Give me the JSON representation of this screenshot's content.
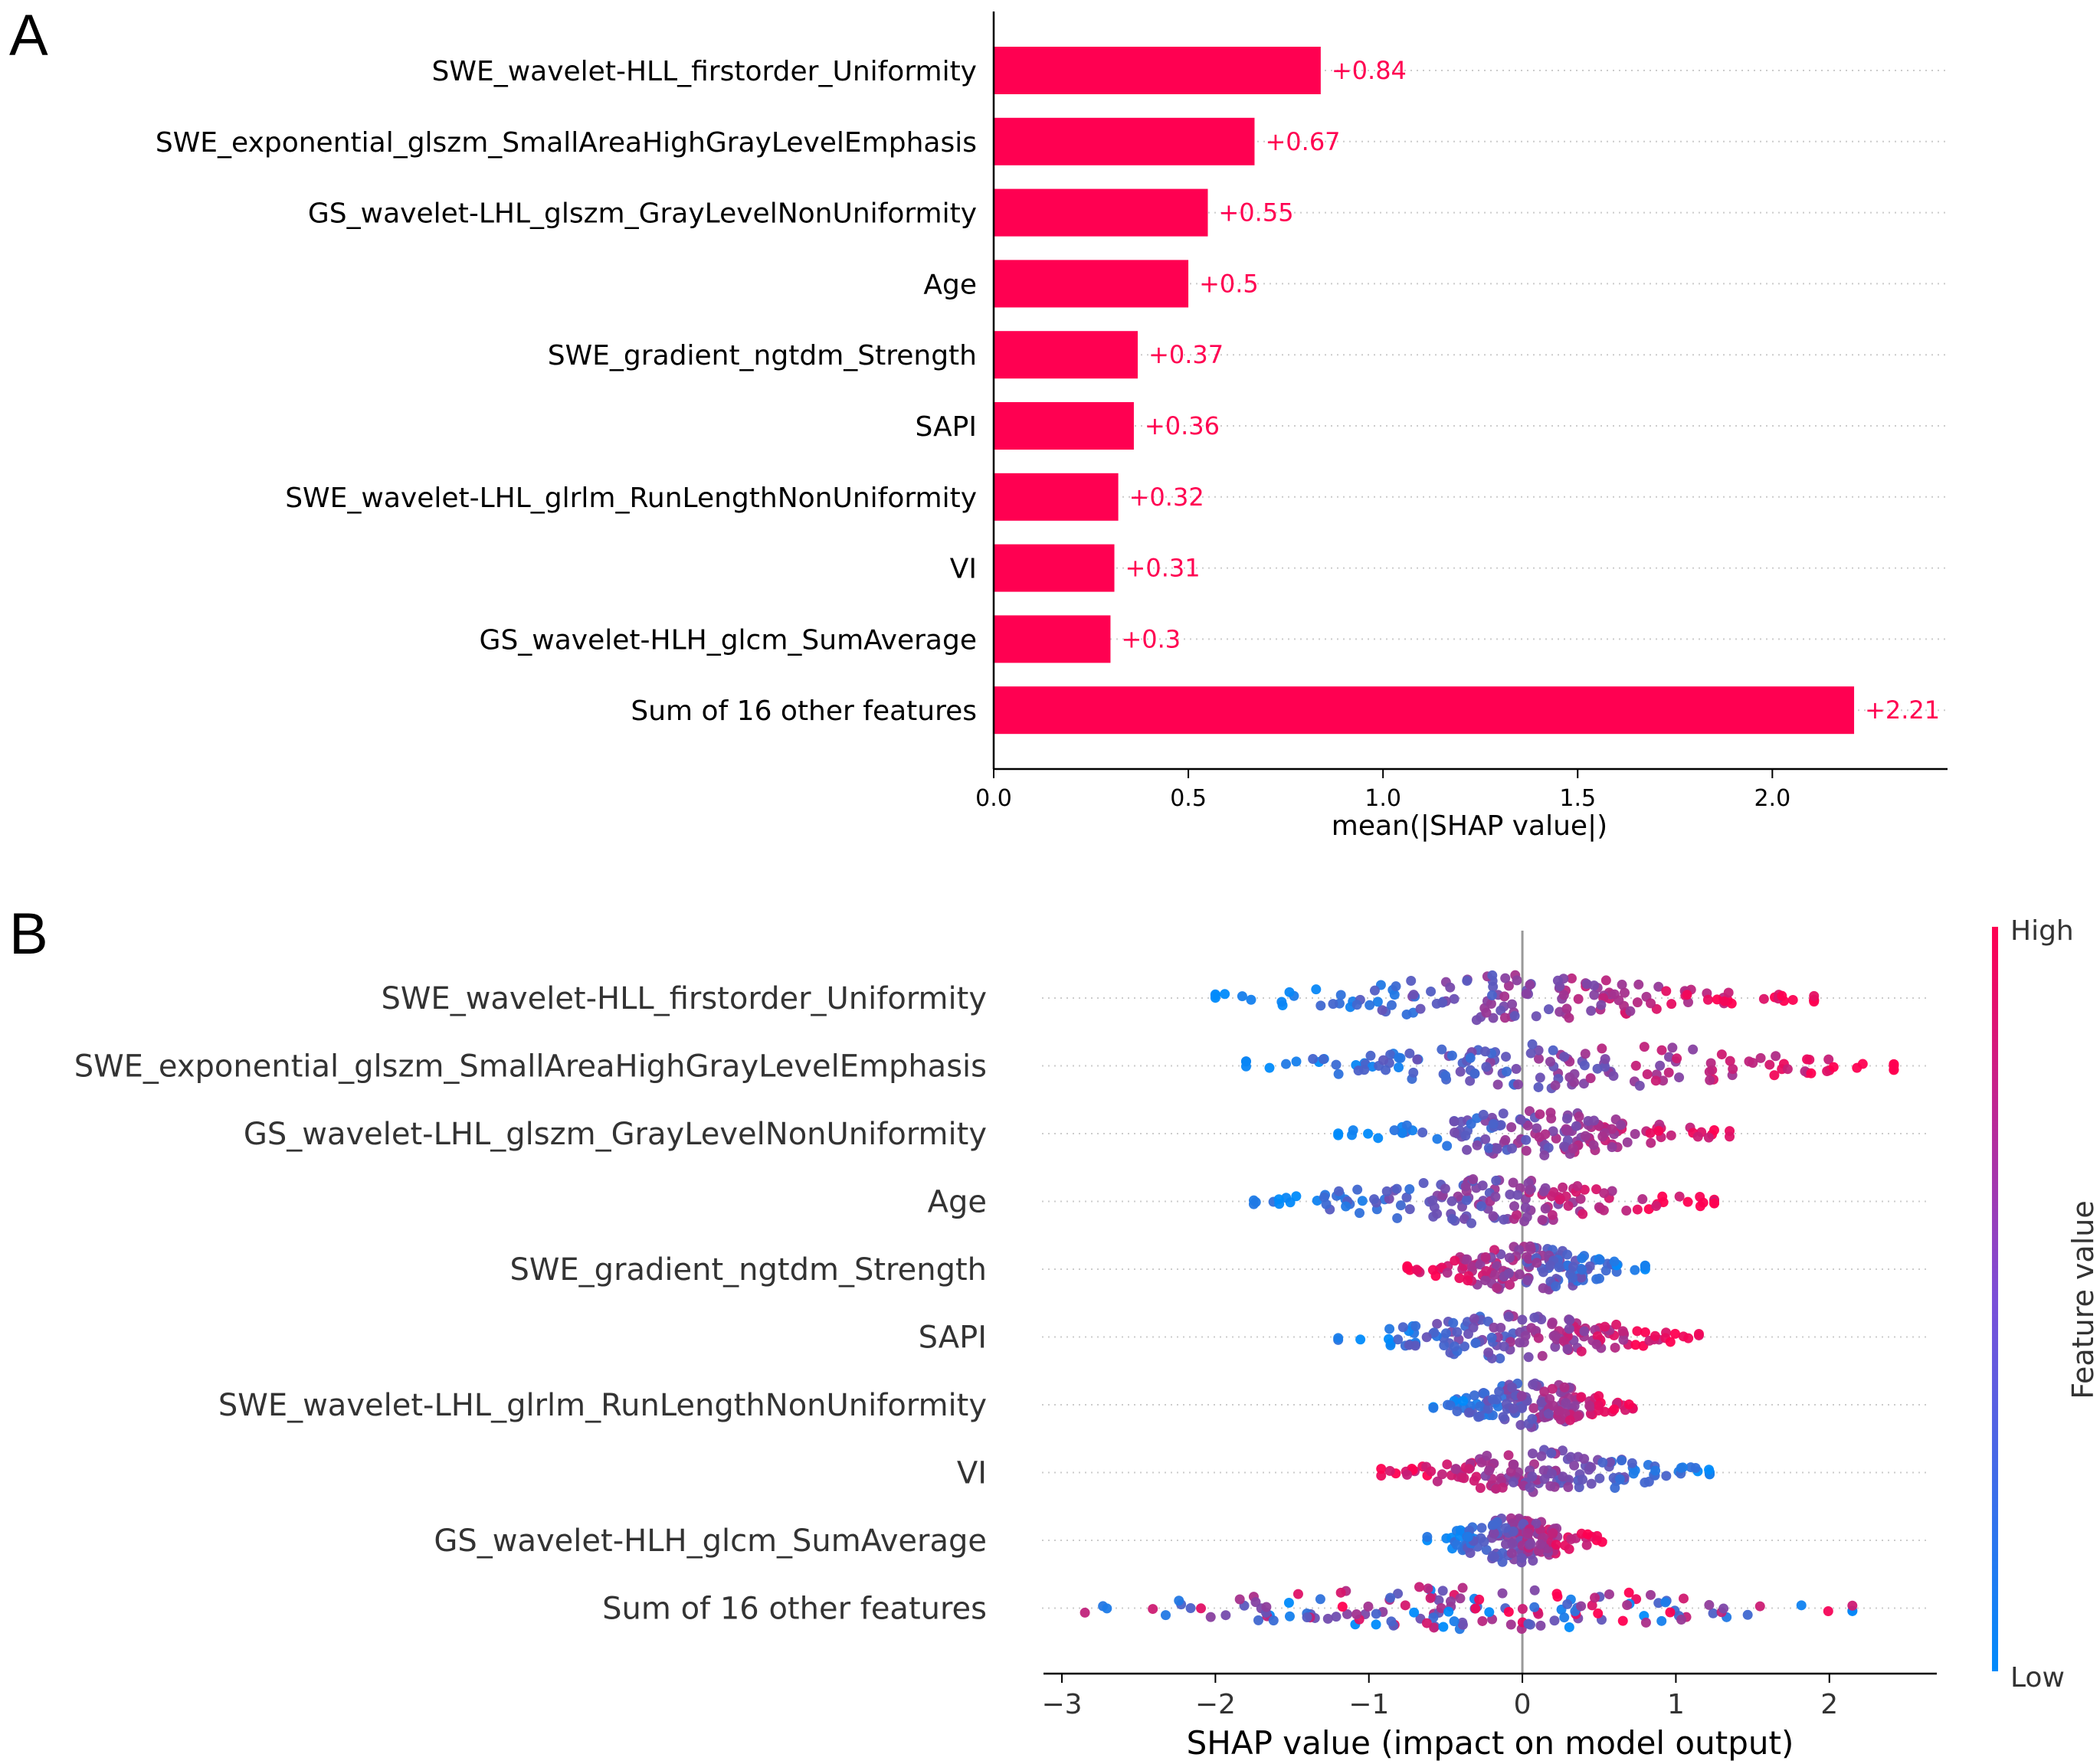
{
  "panel_labels": {
    "a": "A",
    "b": "B"
  },
  "colors": {
    "bar": "#ff0051",
    "low": "#008bfb",
    "high": "#ff0051",
    "axis": "#333333",
    "label": "#333333",
    "value_text": "#ff0051"
  },
  "chart_data": [
    {
      "type": "bar",
      "orientation": "horizontal",
      "panel": "A",
      "categories": [
        "SWE_wavelet-HLL_firstorder_Uniformity",
        "SWE_exponential_glszm_SmallAreaHighGrayLevelEmphasis",
        "GS_wavelet-LHL_glszm_GrayLevelNonUniformity",
        "Age",
        "SWE_gradient_ngtdm_Strength",
        "SAPI",
        "SWE_wavelet-LHL_glrlm_RunLengthNonUniformity",
        "VI",
        "GS_wavelet-HLH_glcm_SumAverage",
        "Sum of 16 other features"
      ],
      "values": [
        0.84,
        0.67,
        0.55,
        0.5,
        0.37,
        0.36,
        0.32,
        0.31,
        0.3,
        2.21
      ],
      "value_labels": [
        "+0.84",
        "+0.67",
        "+0.55",
        "+0.5",
        "+0.37",
        "+0.36",
        "+0.32",
        "+0.31",
        "+0.3",
        "+2.21"
      ],
      "xlabel": "mean(|SHAP value|)",
      "xlim": [
        0,
        2.45
      ],
      "xticks": [
        0.0,
        0.5,
        1.0,
        1.5,
        2.0
      ],
      "xtick_labels": [
        "0.0",
        "0.5",
        "1.0",
        "1.5",
        "2.0"
      ]
    },
    {
      "type": "scatter",
      "subtype": "beeswarm",
      "panel": "B",
      "categories": [
        "SWE_wavelet-HLL_firstorder_Uniformity",
        "SWE_exponential_glszm_SmallAreaHighGrayLevelEmphasis",
        "GS_wavelet-LHL_glszm_GrayLevelNonUniformity",
        "Age",
        "SWE_gradient_ngtdm_Strength",
        "SAPI",
        "SWE_wavelet-LHL_glrlm_RunLengthNonUniformity",
        "VI",
        "GS_wavelet-HLH_glcm_SumAverage",
        "Sum of 16 other features"
      ],
      "shap_ranges": [
        [
          -2.0,
          1.9
        ],
        [
          -1.8,
          2.42
        ],
        [
          -1.2,
          1.35
        ],
        [
          -1.75,
          1.25
        ],
        [
          -0.75,
          0.8
        ],
        [
          -1.2,
          1.15
        ],
        [
          -0.58,
          0.72
        ],
        [
          -0.92,
          1.22
        ],
        [
          -0.62,
          0.52
        ],
        [
          -2.85,
          2.15
        ]
      ],
      "high_direction": [
        1,
        1,
        1,
        1,
        -1,
        1,
        1,
        -1,
        1,
        0
      ],
      "xlabel": "SHAP value (impact on model output)",
      "xlim": [
        -3.12,
        2.7
      ],
      "xticks": [
        -3,
        -2,
        -1,
        0,
        1,
        2
      ],
      "xtick_labels": [
        "−3",
        "−2",
        "−1",
        "0",
        "1",
        "2"
      ],
      "colorbar": {
        "label": "Feature value",
        "high": "High",
        "low": "Low"
      }
    }
  ]
}
